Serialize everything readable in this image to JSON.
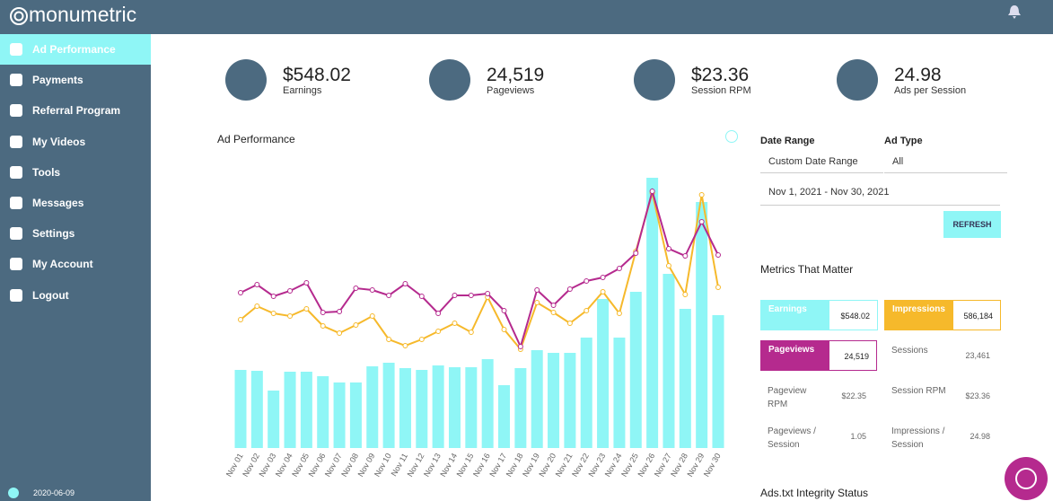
{
  "header": {
    "logo": "monumetric"
  },
  "sidebar": {
    "items": [
      "Ad Performance",
      "Payments",
      "Referral Program",
      "My Videos",
      "Tools",
      "Messages",
      "Settings",
      "My Account",
      "Logout"
    ],
    "version": "2020-06-09"
  },
  "stats": [
    {
      "value": "$548.02",
      "label": "Earnings"
    },
    {
      "value": "24,519",
      "label": "Pageviews"
    },
    {
      "value": "$23.36",
      "label": "Session RPM"
    },
    {
      "value": "24.98",
      "label": "Ads per Session"
    }
  ],
  "chart_data": {
    "type": "bar",
    "title": "Ad Performance",
    "categories": [
      "Nov 01",
      "Nov 02",
      "Nov 03",
      "Nov 04",
      "Nov 05",
      "Nov 06",
      "Nov 07",
      "Nov 08",
      "Nov 09",
      "Nov 10",
      "Nov 11",
      "Nov 12",
      "Nov 13",
      "Nov 14",
      "Nov 15",
      "Nov 16",
      "Nov 17",
      "Nov 18",
      "Nov 19",
      "Nov 20",
      "Nov 21",
      "Nov 22",
      "Nov 23",
      "Nov 24",
      "Nov 25",
      "Nov 26",
      "Nov 27",
      "Nov 28",
      "Nov 29",
      "Nov 30"
    ],
    "series": [
      {
        "name": "Earnings",
        "type": "bar",
        "color": "#8ff6f6",
        "values": [
          87,
          86,
          64,
          85,
          85,
          80,
          73,
          73,
          91,
          95,
          89,
          87,
          92,
          90,
          90,
          99,
          70,
          89,
          109,
          106,
          106,
          123,
          166,
          123,
          174,
          301,
          194,
          155,
          274,
          148
        ]
      },
      {
        "name": "Impressions",
        "type": "line",
        "color": "#f6b92b",
        "values": [
          143,
          158,
          150,
          147,
          155,
          136,
          128,
          137,
          147,
          121,
          114,
          121,
          130,
          139,
          129,
          168,
          132,
          110,
          162,
          151,
          139,
          153,
          174,
          150,
          219,
          284,
          203,
          171,
          282,
          179
        ]
      },
      {
        "name": "Pageviews",
        "type": "line",
        "color": "#b52a8e",
        "values": [
          173,
          182,
          169,
          175,
          184,
          151,
          152,
          178,
          176,
          170,
          183,
          169,
          150,
          170,
          170,
          172,
          153,
          113,
          176,
          159,
          177,
          186,
          190,
          200,
          217,
          286,
          222,
          214,
          252,
          215
        ]
      }
    ]
  },
  "filters": {
    "date_label": "Date Range",
    "date_value": "Custom Date Range",
    "type_label": "Ad Type",
    "type_value": "All",
    "range": "Nov 1, 2021 - Nov 30, 2021",
    "button": "REFRESH"
  },
  "metrics": {
    "title": "Metrics That Matter",
    "highlight_values": [
      "$548.02",
      "586,184",
      "24,519"
    ],
    "cells": [
      {
        "label": "Sessions",
        "value": "23,461"
      },
      {
        "label": "Pageview RPM",
        "value": "$22.35"
      },
      {
        "label": "Session RPM",
        "value": "$23.36"
      },
      {
        "label": "Pageviews / Session",
        "value": "1.05"
      },
      {
        "label": "Impressions / Session",
        "value": "24.98"
      }
    ]
  },
  "footer_heading": "Ads.txt Integrity Status"
}
